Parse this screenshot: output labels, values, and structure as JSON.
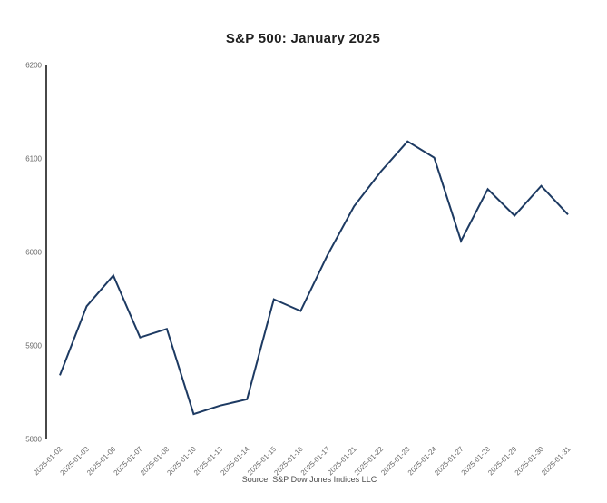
{
  "source_note": "Source: S&P Dow Jones Indices LLC",
  "colors": {
    "background": "#ffffff",
    "line": "#1d3a62",
    "axis": "#1a1a1a",
    "title": "#1f1f1f",
    "tick_label": "#666666",
    "source": "#4d4d4d"
  },
  "chart_data": {
    "type": "line",
    "title": "S&P 500: January 2025",
    "xlabel": "",
    "ylabel": "",
    "x": [
      "2025-01-02",
      "2025-01-03",
      "2025-01-06",
      "2025-01-07",
      "2025-01-08",
      "2025-01-10",
      "2025-01-13",
      "2025-01-14",
      "2025-01-15",
      "2025-01-16",
      "2025-01-17",
      "2025-01-21",
      "2025-01-22",
      "2025-01-23",
      "2025-01-24",
      "2025-01-27",
      "2025-01-28",
      "2025-01-29",
      "2025-01-30",
      "2025-01-31"
    ],
    "values": [
      5868.55,
      5942.47,
      5975.38,
      5909.03,
      5918.25,
      5827.04,
      5836.22,
      5842.91,
      5949.91,
      5937.34,
      5996.66,
      6049.24,
      6086.37,
      6118.71,
      6101.24,
      6012.28,
      6067.7,
      6039.31,
      6071.17,
      6040.53
    ],
    "ylim": [
      5800,
      6200
    ],
    "yticks": [
      5800,
      5900,
      6000,
      6100,
      6200
    ],
    "grid": false,
    "legend": "none",
    "x_tick_rotation": 45
  }
}
